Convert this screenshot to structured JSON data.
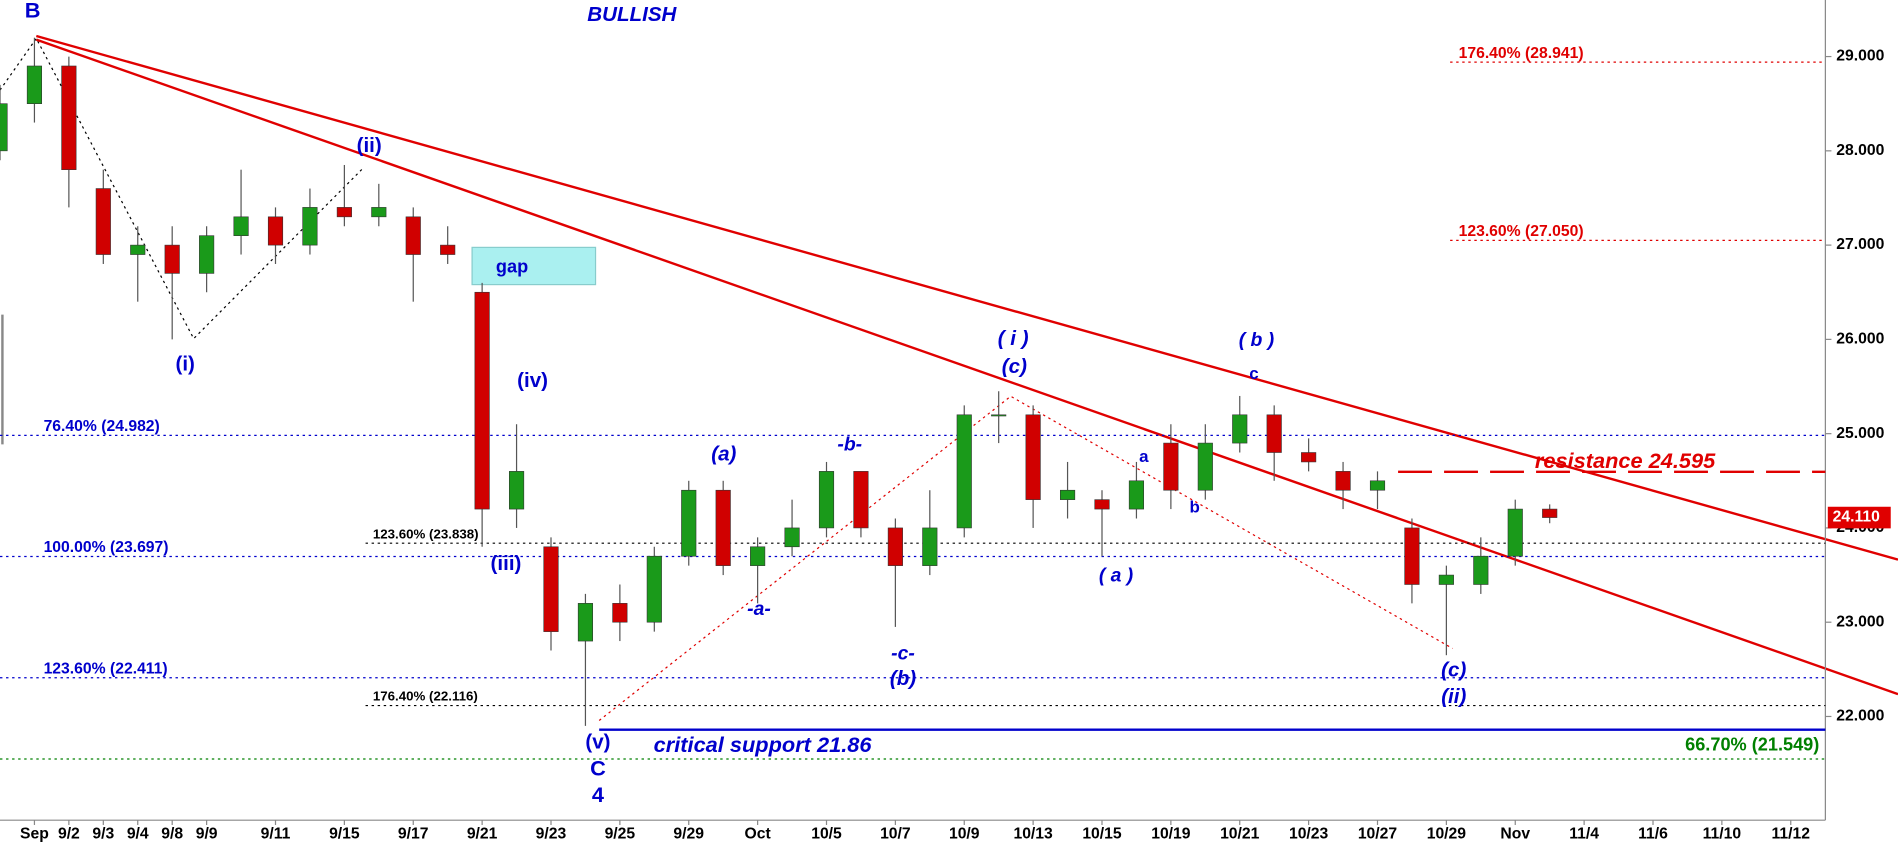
{
  "chart_data": {
    "type": "candlestick",
    "categories": [
      null,
      "Sep",
      "9/2",
      "9/3",
      "9/4",
      "9/8",
      "9/9",
      null,
      "9/11",
      null,
      "9/15",
      null,
      "9/17",
      null,
      "9/21",
      null,
      "9/23",
      null,
      "9/25",
      null,
      "9/29",
      null,
      "Oct",
      null,
      "10/5",
      null,
      "10/7",
      null,
      "10/9",
      null,
      "10/13",
      null,
      "10/15",
      null,
      "10/19",
      null,
      "10/21",
      null,
      "10/23",
      null,
      "10/27",
      null,
      "10/29",
      null,
      "Nov",
      null,
      "11/4",
      null,
      "11/6",
      null,
      "11/10",
      null,
      "11/12"
    ],
    "open": [
      28.0,
      28.5,
      28.9,
      27.6,
      26.9,
      27.0,
      26.7,
      27.1,
      27.3,
      27.0,
      27.4,
      27.3,
      27.3,
      27.0,
      26.5,
      24.2,
      23.8,
      22.8,
      23.2,
      23.0,
      23.7,
      24.4,
      23.6,
      23.8,
      24.0,
      24.6,
      24.0,
      23.6,
      24.0,
      25.2,
      25.2,
      24.3,
      24.3,
      24.2,
      24.9,
      24.4,
      24.9,
      25.2,
      24.8,
      24.6,
      24.4,
      24.0,
      23.4,
      23.4,
      23.7,
      24.2,
      null,
      null,
      null,
      null,
      null,
      null,
      null
    ],
    "high": [
      28.7,
      29.2,
      29.0,
      27.8,
      27.2,
      27.2,
      27.2,
      27.8,
      27.4,
      27.6,
      27.85,
      27.65,
      27.4,
      27.2,
      26.6,
      25.1,
      23.9,
      23.3,
      23.4,
      23.8,
      24.5,
      24.5,
      23.9,
      24.3,
      24.7,
      24.6,
      24.1,
      24.4,
      25.3,
      25.45,
      25.3,
      24.7,
      24.4,
      24.7,
      25.1,
      25.1,
      25.4,
      25.3,
      24.95,
      24.7,
      24.6,
      24.1,
      23.6,
      23.9,
      24.3,
      24.25,
      null,
      null,
      null,
      null,
      null,
      null,
      null
    ],
    "low": [
      27.9,
      28.3,
      27.4,
      26.8,
      26.4,
      26.0,
      26.5,
      26.9,
      26.8,
      26.9,
      27.2,
      27.2,
      26.4,
      26.8,
      23.8,
      24.0,
      22.7,
      21.9,
      22.8,
      22.9,
      23.6,
      23.5,
      23.2,
      23.7,
      23.9,
      23.9,
      22.95,
      23.5,
      23.9,
      24.9,
      24.0,
      24.1,
      23.7,
      24.1,
      24.2,
      24.3,
      24.8,
      24.5,
      24.6,
      24.2,
      24.2,
      23.2,
      22.65,
      23.3,
      23.6,
      24.05,
      null,
      null,
      null,
      null,
      null,
      null,
      null
    ],
    "close": [
      28.5,
      28.9,
      27.8,
      26.9,
      27.0,
      26.7,
      27.1,
      27.3,
      27.0,
      27.4,
      27.3,
      27.4,
      26.9,
      26.9,
      24.2,
      24.6,
      22.9,
      23.2,
      23.0,
      23.7,
      24.4,
      23.6,
      23.8,
      24.0,
      24.6,
      24.0,
      23.6,
      24.0,
      25.2,
      25.2,
      24.3,
      24.4,
      24.2,
      24.5,
      24.4,
      24.9,
      25.2,
      24.8,
      24.7,
      24.4,
      24.5,
      23.4,
      23.5,
      23.7,
      24.2,
      24.11,
      null,
      null,
      null,
      null,
      null,
      null,
      null
    ],
    "up_color": "#1a9a1a",
    "down_color": "#d00000",
    "ylim": [
      20.9,
      29.6
    ],
    "yticks": [
      {
        "value": 22,
        "label": "22.000"
      },
      {
        "value": 23,
        "label": "23.000"
      },
      {
        "value": 24,
        "label": "24.000"
      },
      {
        "value": 25,
        "label": "25.000"
      },
      {
        "value": 26,
        "label": "26.000"
      },
      {
        "value": 27,
        "label": "27.000"
      },
      {
        "value": 28,
        "label": "28.000"
      },
      {
        "value": 29,
        "label": "29.000"
      }
    ],
    "last_price": {
      "value": 24.11,
      "label": "24.110"
    },
    "levels": [
      {
        "label": "176.40% (28.941)",
        "value": 28.941,
        "color": "#e00000",
        "style": "dotted"
      },
      {
        "label": "123.60% (27.050)",
        "value": 27.05,
        "color": "#e00000",
        "style": "dotted"
      },
      {
        "label": "76.40% (24.982)",
        "value": 24.982,
        "color": "#0000cc",
        "style": "dotted"
      },
      {
        "label": "123.60% (23.838)",
        "value": 23.838,
        "color": "#000000",
        "style": "dotted"
      },
      {
        "label": "100.00% (23.697)",
        "value": 23.697,
        "color": "#0000cc",
        "style": "dotted"
      },
      {
        "label": "123.60% (22.411)",
        "value": 22.411,
        "color": "#0000cc",
        "style": "dotted"
      },
      {
        "label": "176.40% (22.116)",
        "value": 22.116,
        "color": "#000000",
        "style": "dotted"
      },
      {
        "label": "critical support 21.86",
        "value": 21.86,
        "color": "#0000cc",
        "style": "solid"
      },
      {
        "label": "66.70% (21.549)",
        "value": 21.549,
        "color": "#008000",
        "style": "dotted"
      },
      {
        "label": "resistance 24.595",
        "value": 24.595,
        "color": "#e00000",
        "style": "dashed"
      }
    ],
    "annotations": [
      "B",
      "BULLISH",
      "(i)",
      "(ii)",
      "(iii)",
      "(iv)",
      "(v)",
      "C",
      "4",
      "gap",
      "(a)",
      "-b-",
      "-a-",
      "-c-",
      "(b)",
      "( i )",
      "(c)",
      "( a )",
      "a",
      "b",
      "( b )",
      "c",
      "(c)",
      "(ii)"
    ]
  }
}
